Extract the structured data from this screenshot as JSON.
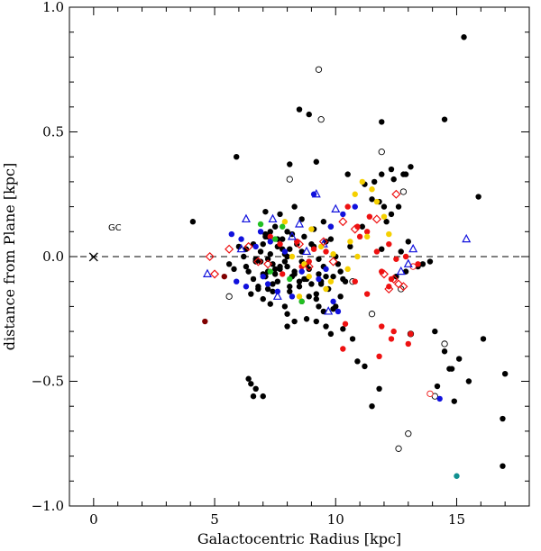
{
  "chart_data": {
    "type": "scatter",
    "xlabel": "Galactocentric Radius [kpc]",
    "ylabel": "distance from Plane [kpc]",
    "xlim": [
      -1,
      18
    ],
    "ylim": [
      -1.0,
      1.0
    ],
    "x_ticks": [
      0,
      5,
      10,
      15
    ],
    "x_tick_labels": [
      "0",
      "5",
      "10",
      "15"
    ],
    "y_ticks": [
      -1.0,
      -0.5,
      0.0,
      0.5,
      1.0
    ],
    "y_tick_labels": [
      "−1.0",
      "−0.5",
      "0.0",
      "0.5",
      "1.0"
    ],
    "grid": false,
    "reference_line": {
      "y": 0.0,
      "style": "dashed"
    },
    "annotations": [
      {
        "text": "GC",
        "x": 0.6,
        "y": 0.12
      },
      {
        "text": "×",
        "x": 0.0,
        "y": 0.0
      }
    ],
    "colors": {
      "black": "#000000",
      "red": "#ee1111",
      "blue": "#1111dd",
      "yellow": "#f5d000",
      "green": "#22c022",
      "darkred": "#800000",
      "teal": "#109090"
    },
    "series": [
      {
        "marker": "filled-circle",
        "color": "black",
        "x": [
          15.3,
          8.5,
          8.9,
          11.9,
          14.5,
          8.1,
          5.9,
          9.2,
          10.5,
          12.3,
          12.8,
          13.1,
          11.6,
          11.9,
          12.4,
          12.9,
          4.1,
          7.1,
          7.7,
          8.3,
          7.5,
          8.6,
          7.1,
          7.3,
          7.8,
          8.2,
          7.0,
          7.6,
          9.5,
          9.8,
          8.1,
          8.4,
          8.0,
          7.2,
          7.9,
          8.6,
          9.1,
          9.6,
          7.4,
          7.7,
          8.0,
          6.9,
          7.5,
          8.3,
          8.8,
          6.3,
          7.1,
          7.6,
          8.7,
          9.3,
          6.8,
          7.2,
          9.0,
          9.4,
          9.9,
          10.2,
          6.5,
          7.0,
          8.1,
          8.9,
          5.8,
          6.6,
          7.4,
          8.5,
          9.2,
          9.7,
          10.3,
          6.9,
          7.3,
          7.8,
          8.4,
          9.0,
          10.6,
          6.2,
          6.7,
          7.9,
          8.6,
          9.3,
          10.0,
          6.4,
          7.0,
          7.5,
          8.2,
          8.8,
          9.5,
          10.1,
          5.6,
          6.3,
          7.2,
          7.7,
          8.3,
          8.9,
          9.6,
          10.4,
          6.0,
          6.6,
          7.1,
          7.6,
          8.0,
          8.7,
          9.1,
          9.8,
          6.8,
          7.4,
          8.1,
          8.5,
          9.4,
          10.2,
          7.3,
          7.9,
          8.6,
          9.2,
          9.9,
          8.0,
          8.8,
          9.5,
          10.0,
          6.7,
          7.2,
          11.8,
          12.0,
          12.3,
          11.5,
          11.2,
          12.6,
          12.1,
          15.9,
          13.0,
          12.7,
          11.9,
          11.1,
          14.1,
          16.1,
          14.5,
          14.8,
          15.1,
          15.5,
          14.7,
          14.2,
          14.9,
          16.9,
          17.0,
          16.9,
          11.8,
          11.5,
          10.7,
          8.3,
          8.0,
          9.6,
          9.2,
          9.8,
          10.9,
          11.2,
          12.5,
          12.9,
          13.4,
          13.6,
          13.9,
          6.4,
          6.5,
          6.6,
          6.7,
          7.0,
          9.3,
          10.3
        ],
        "y": [
          0.88,
          0.59,
          0.57,
          0.54,
          0.55,
          0.37,
          0.4,
          0.38,
          0.33,
          0.35,
          0.33,
          0.36,
          0.3,
          0.33,
          0.31,
          0.33,
          0.14,
          0.18,
          0.17,
          0.2,
          0.12,
          0.15,
          0.08,
          0.1,
          0.07,
          0.09,
          0.05,
          0.04,
          0.14,
          0.12,
          0.03,
          0.05,
          0.0,
          -0.01,
          -0.02,
          0.02,
          0.04,
          0.06,
          -0.03,
          -0.05,
          -0.04,
          -0.02,
          -0.07,
          -0.06,
          -0.03,
          -0.04,
          -0.08,
          -0.1,
          -0.09,
          -0.07,
          -0.12,
          -0.13,
          -0.11,
          -0.1,
          -0.08,
          -0.06,
          -0.15,
          -0.17,
          -0.14,
          -0.16,
          -0.05,
          -0.09,
          -0.11,
          -0.12,
          -0.15,
          -0.13,
          -0.09,
          0.02,
          0.01,
          0.03,
          0.06,
          0.05,
          0.04,
          0.0,
          -0.01,
          0.01,
          -0.02,
          -0.01,
          0.0,
          -0.06,
          -0.07,
          -0.05,
          -0.08,
          -0.09,
          -0.04,
          -0.03,
          -0.03,
          0.03,
          -0.06,
          -0.04,
          -0.07,
          -0.05,
          -0.08,
          -0.1,
          0.04,
          0.05,
          0.09,
          0.07,
          0.1,
          0.08,
          0.11,
          0.07,
          -0.13,
          -0.14,
          -0.12,
          -0.1,
          -0.11,
          -0.16,
          -0.19,
          -0.2,
          -0.18,
          -0.17,
          -0.21,
          -0.23,
          -0.25,
          -0.22,
          -0.2,
          -0.02,
          0.08,
          0.22,
          0.2,
          0.17,
          0.23,
          0.29,
          0.2,
          0.14,
          0.24,
          0.06,
          0.02,
          0.03,
          0.12,
          -0.3,
          -0.33,
          -0.38,
          -0.45,
          -0.41,
          -0.5,
          -0.45,
          -0.52,
          -0.58,
          -0.65,
          -0.47,
          -0.84,
          -0.53,
          -0.6,
          -0.33,
          -0.26,
          -0.28,
          -0.28,
          -0.26,
          -0.31,
          -0.42,
          -0.44,
          -0.08,
          -0.06,
          -0.04,
          -0.03,
          -0.02,
          -0.49,
          -0.51,
          -0.56,
          -0.53,
          -0.56,
          -0.2,
          -0.29
        ]
      },
      {
        "marker": "open-circle",
        "color": "black",
        "x": [
          9.3,
          9.4,
          11.9,
          12.8,
          8.1,
          5.6,
          10.7,
          12.7,
          11.5,
          13.1,
          14.1,
          13.0,
          12.6,
          14.5
        ],
        "y": [
          0.75,
          0.55,
          0.42,
          0.26,
          0.31,
          -0.16,
          -0.1,
          -0.13,
          -0.23,
          -0.31,
          -0.56,
          -0.71,
          -0.77,
          -0.35
        ]
      },
      {
        "marker": "filled-circle",
        "color": "red",
        "x": [
          10.5,
          11.4,
          10.9,
          11.3,
          12.2,
          11.7,
          12.5,
          11.0,
          12.9,
          13.4,
          12.2,
          11.3,
          10.4,
          11.9,
          12.4,
          13.0,
          11.8,
          12.3,
          9.6,
          8.4,
          8.9,
          9.1,
          7.3,
          7.7,
          10.8,
          11.9,
          12.3,
          13.1,
          10.3,
          7.8,
          8.6
        ],
        "y": [
          0.2,
          0.16,
          0.12,
          0.1,
          0.05,
          0.02,
          -0.01,
          0.08,
          0.0,
          -0.03,
          -0.12,
          -0.15,
          -0.27,
          -0.28,
          -0.3,
          -0.35,
          -0.4,
          -0.33,
          0.02,
          0.06,
          -0.02,
          0.03,
          0.08,
          0.05,
          -0.1,
          -0.06,
          -0.09,
          -0.31,
          -0.37,
          -0.07,
          -0.04
        ]
      },
      {
        "marker": "open-circle",
        "color": "red",
        "x": [
          13.9,
          13.2
        ],
        "y": [
          -0.55,
          -0.04
        ]
      },
      {
        "marker": "filled-circle",
        "color": "blue",
        "x": [
          9.1,
          10.8,
          10.3,
          9.8,
          5.7,
          6.1,
          6.7,
          7.3,
          7.9,
          5.9,
          6.3,
          7.0,
          8.6,
          9.3,
          9.9,
          10.1,
          7.2,
          8.2,
          9.6,
          6.9,
          14.3,
          7.6
        ],
        "y": [
          0.25,
          0.2,
          0.17,
          0.12,
          0.09,
          0.07,
          0.04,
          0.06,
          0.02,
          -0.1,
          -0.12,
          -0.08,
          -0.06,
          -0.09,
          -0.18,
          -0.22,
          -0.11,
          -0.16,
          -0.05,
          0.1,
          -0.57,
          -0.14
        ]
      },
      {
        "marker": "open-triangle",
        "color": "blue",
        "x": [
          9.2,
          10.0,
          7.4,
          8.5,
          9.5,
          6.1,
          8.2,
          8.8,
          13.2,
          13.0,
          12.7,
          15.4,
          4.7,
          7.6,
          9.7,
          6.3
        ],
        "y": [
          0.25,
          0.19,
          0.15,
          0.13,
          0.05,
          0.03,
          0.08,
          0.02,
          0.03,
          -0.03,
          -0.06,
          0.07,
          -0.07,
          -0.16,
          -0.22,
          0.15
        ]
      },
      {
        "marker": "filled-circle",
        "color": "yellow",
        "x": [
          11.1,
          11.5,
          10.8,
          11.7,
          12.0,
          11.3,
          10.6,
          9.4,
          9.9,
          10.9,
          9.0,
          8.2,
          8.7,
          8.9,
          9.8,
          8.5,
          10.5,
          9.6,
          7.9,
          12.2
        ],
        "y": [
          0.3,
          0.27,
          0.25,
          0.22,
          0.16,
          0.08,
          0.06,
          0.04,
          0.01,
          0.0,
          0.11,
          0.0,
          -0.03,
          -0.08,
          -0.1,
          -0.16,
          -0.05,
          -0.13,
          0.14,
          0.09
        ]
      },
      {
        "marker": "open-diamond",
        "color": "red",
        "x": [
          12.5,
          11.7,
          10.3,
          10.8,
          4.8,
          5.6,
          6.4,
          6.8,
          7.2,
          8.5,
          9.5,
          12.6,
          12.8,
          12.0,
          12.4,
          9.9,
          5.0,
          12.2,
          8.9
        ],
        "y": [
          0.25,
          0.15,
          0.14,
          0.11,
          0.0,
          0.03,
          0.04,
          -0.02,
          -0.03,
          0.05,
          0.06,
          -0.11,
          -0.12,
          -0.07,
          -0.09,
          -0.02,
          -0.07,
          -0.13,
          -0.04
        ]
      },
      {
        "marker": "filled-circle",
        "color": "green",
        "x": [
          6.9,
          7.5,
          7.3,
          8.1,
          8.6,
          7.8
        ],
        "y": [
          0.13,
          0.07,
          -0.06,
          -0.09,
          -0.18,
          0.12
        ]
      },
      {
        "marker": "filled-circle",
        "color": "darkred",
        "x": [
          4.6,
          5.4
        ],
        "y": [
          -0.26,
          -0.08
        ]
      },
      {
        "marker": "filled-circle",
        "color": "teal",
        "x": [
          15.0
        ],
        "y": [
          -0.88
        ]
      }
    ]
  }
}
